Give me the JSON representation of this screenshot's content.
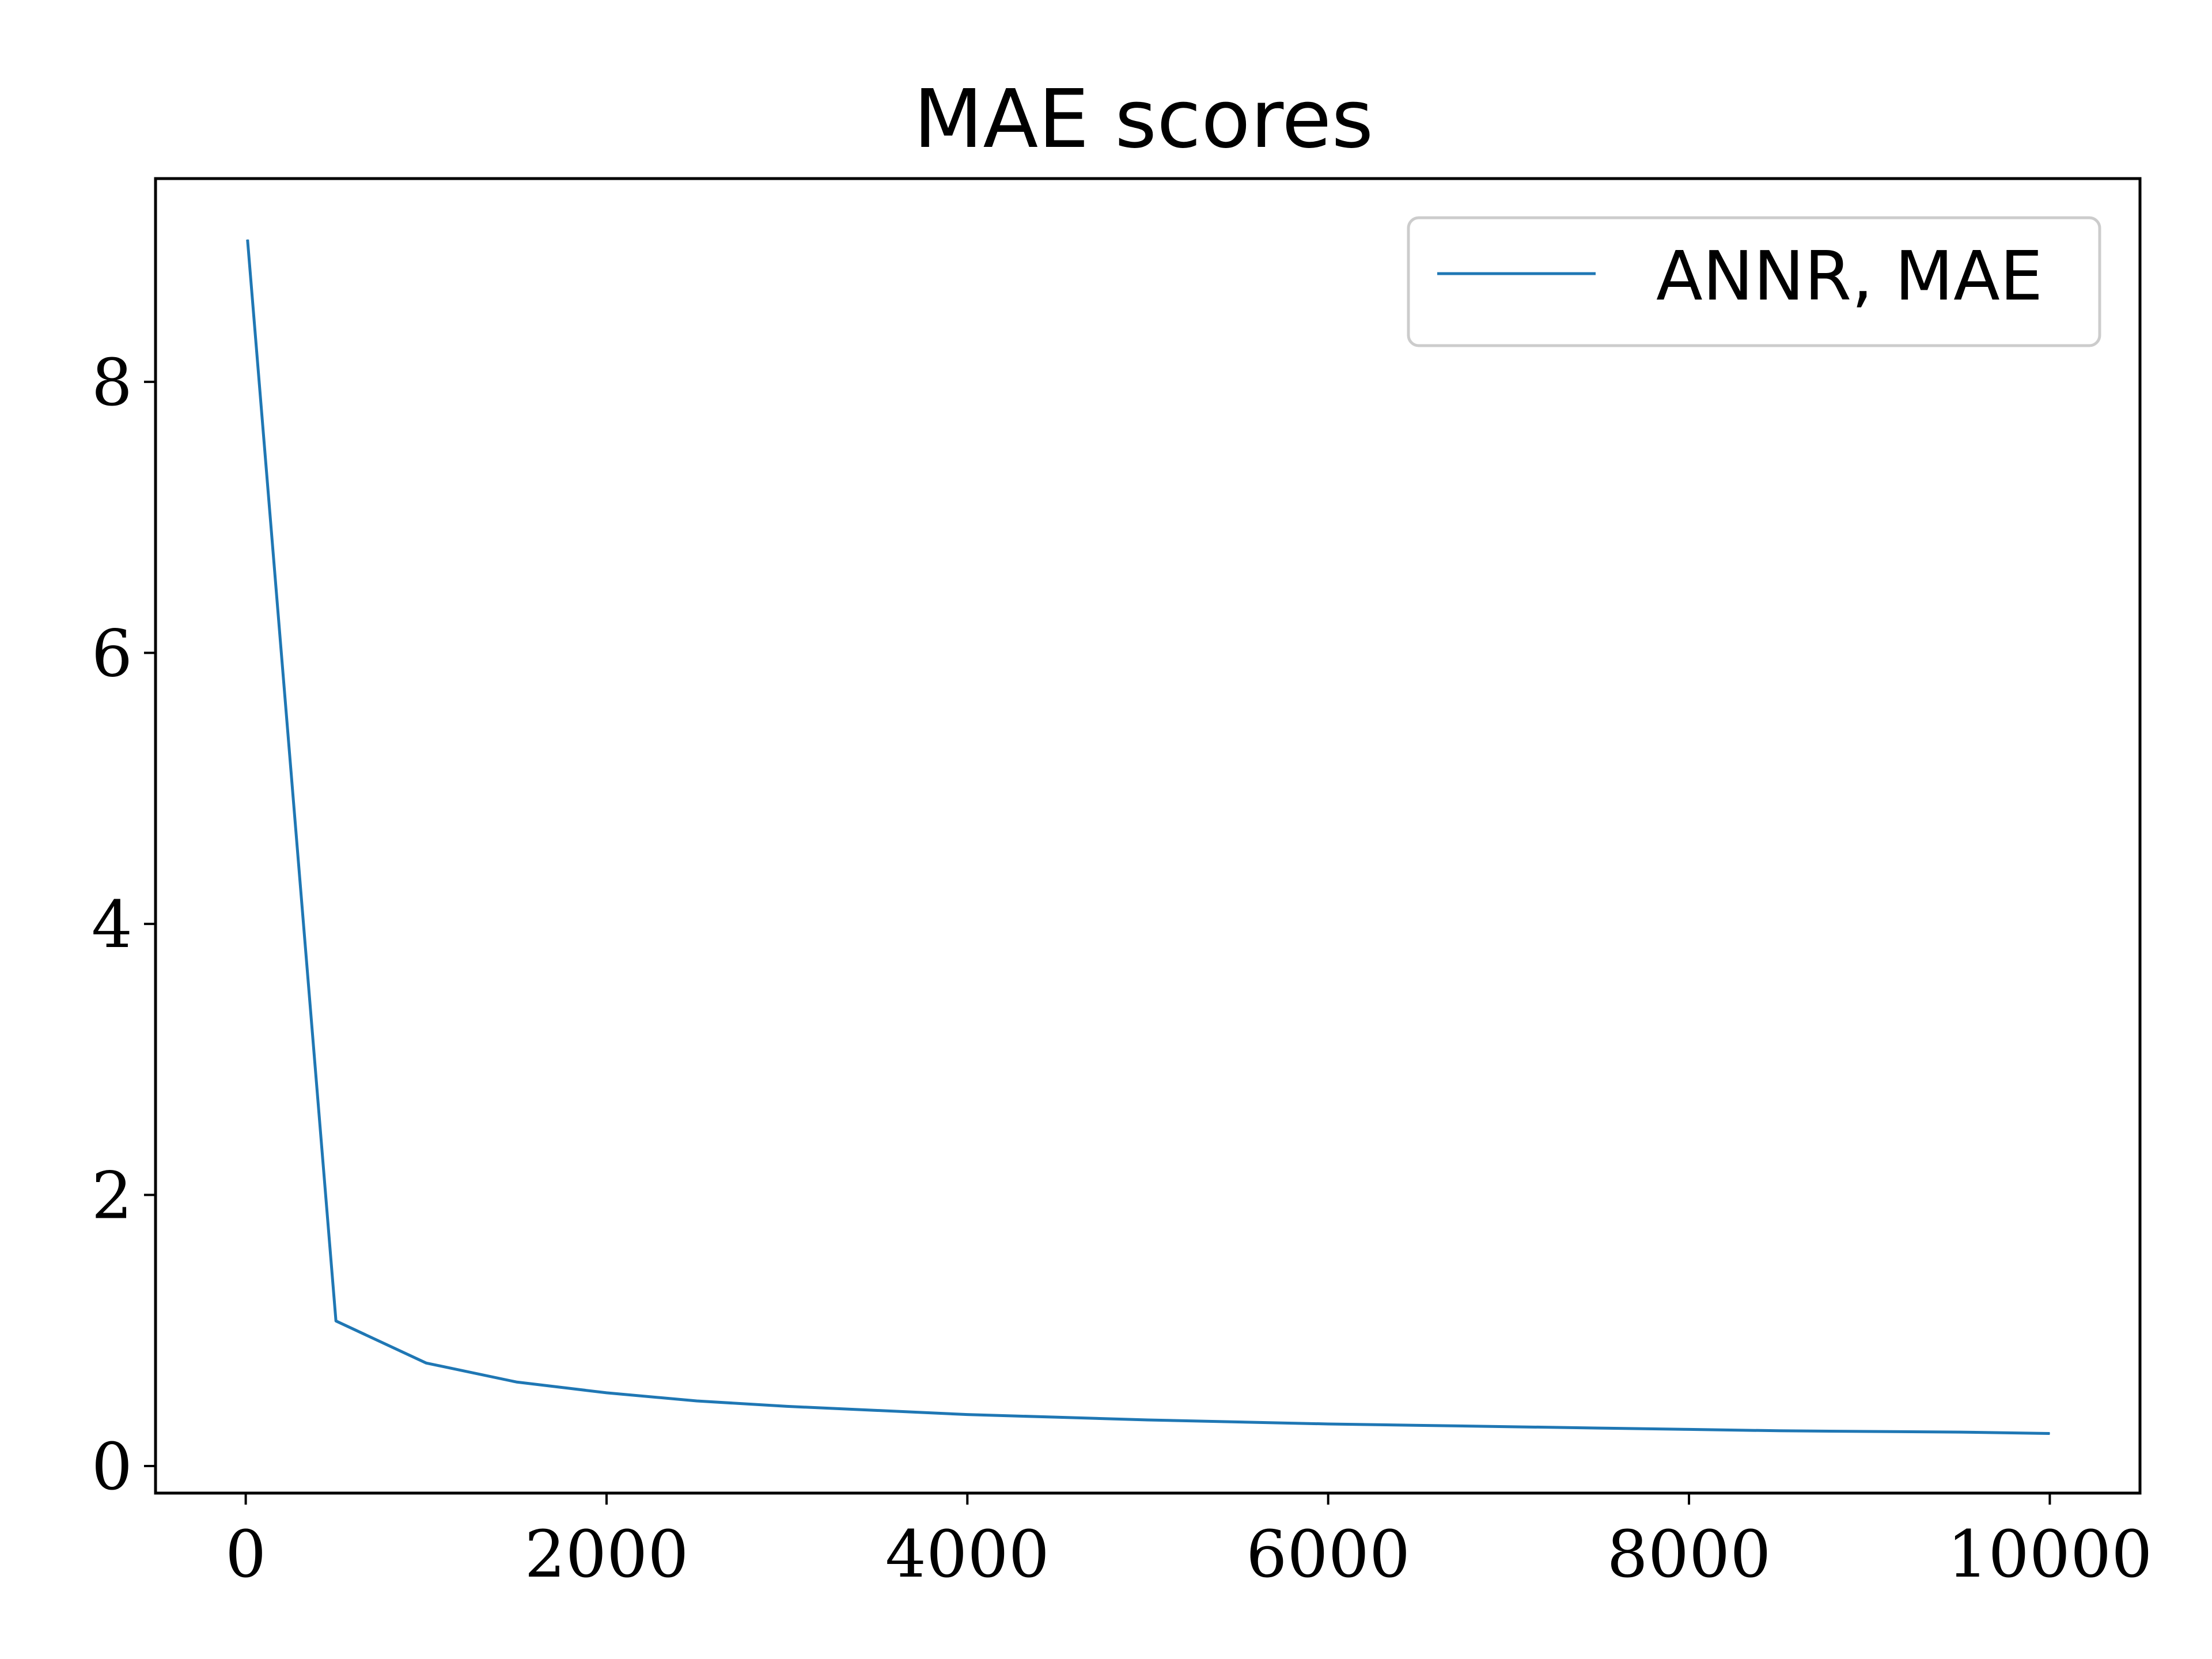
{
  "chart_data": {
    "type": "line",
    "title": "MAE scores",
    "xlabel": "",
    "ylabel": "",
    "xlim": [
      -500,
      10500
    ],
    "ylim": [
      -0.2,
      9.5
    ],
    "xticks": [
      0,
      2000,
      4000,
      6000,
      8000,
      10000
    ],
    "xtick_labels": [
      "0",
      "2000",
      "4000",
      "6000",
      "8000",
      "10000"
    ],
    "yticks": [
      0,
      2,
      4,
      6,
      8
    ],
    "ytick_labels": [
      "0",
      "2",
      "4",
      "6",
      "8"
    ],
    "grid": false,
    "legend_position": "top-right",
    "series": [
      {
        "name": "ANNR, MAE",
        "color": "#1f77b4",
        "x": [
          10,
          500,
          1000,
          1500,
          2000,
          2500,
          3000,
          3500,
          4000,
          4500,
          5000,
          5500,
          6000,
          6500,
          7000,
          7500,
          8000,
          8500,
          9000,
          9500,
          10000
        ],
        "y": [
          9.05,
          1.07,
          0.76,
          0.62,
          0.54,
          0.48,
          0.44,
          0.41,
          0.38,
          0.36,
          0.34,
          0.325,
          0.31,
          0.3,
          0.29,
          0.28,
          0.27,
          0.26,
          0.255,
          0.25,
          0.24
        ]
      }
    ]
  }
}
